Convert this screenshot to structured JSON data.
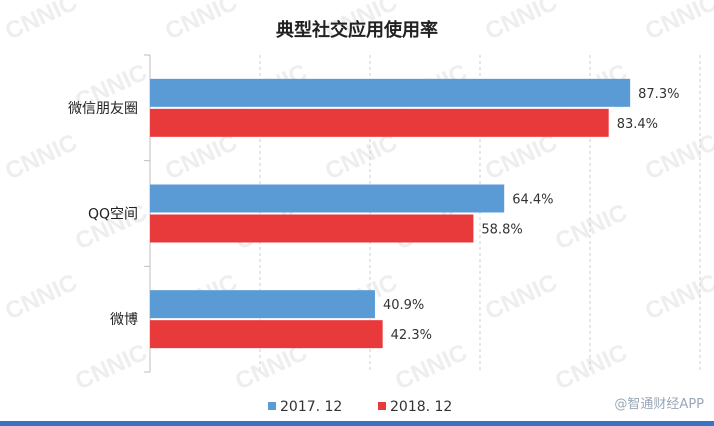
{
  "chart_data": {
    "type": "bar",
    "orientation": "horizontal",
    "title": "典型社交应用使用率",
    "categories": [
      "微信朋友圈",
      "QQ空间",
      "微博"
    ],
    "series": [
      {
        "name": "2017. 12",
        "color": "#5b9bd5",
        "values": [
          87.3,
          64.4,
          40.9
        ],
        "labels": [
          "87.3%",
          "64.4%",
          "40.9%"
        ]
      },
      {
        "name": "2018. 12",
        "color": "#e8393b",
        "values": [
          83.4,
          58.8,
          42.3
        ],
        "labels": [
          "83.4%",
          "58.8%",
          "42.3%"
        ]
      }
    ],
    "xlim": [
      0,
      100
    ],
    "grid": true,
    "legend_position": "bottom"
  },
  "watermark": {
    "text": "CNNIC"
  },
  "brand": {
    "text": "@智通财经APP"
  }
}
